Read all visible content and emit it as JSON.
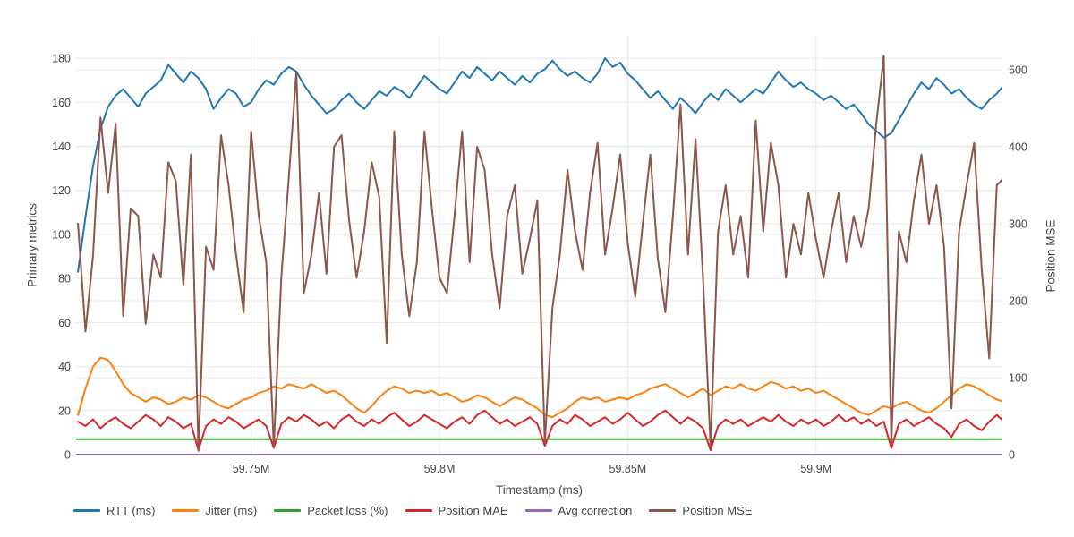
{
  "chart_data": {
    "type": "line",
    "title": "",
    "xlabel": "Timestamp (ms)",
    "ylabel_left": "Primary metrics",
    "ylabel_right": "Position MSE",
    "grid": true,
    "legend_position": "bottom",
    "x_range": [
      59703500,
      59949500
    ],
    "y_left_range": [
      0,
      190.2
    ],
    "y_right_range": [
      0,
      544.2
    ],
    "y_left_ticks": [
      0,
      20,
      40,
      60,
      80,
      100,
      120,
      140,
      160,
      180
    ],
    "y_right_ticks": [
      0,
      100,
      200,
      300,
      400,
      500
    ],
    "x_ticks": [
      {
        "value": 59750000,
        "label": "59.75M"
      },
      {
        "value": 59800000,
        "label": "59.8M"
      },
      {
        "value": 59850000,
        "label": "59.85M"
      },
      {
        "value": 59900000,
        "label": "59.9M"
      }
    ],
    "x_start": 59704000,
    "x_step": 2000,
    "n": 124,
    "series": [
      {
        "name": "RTT (ms)",
        "color": "#1f77b4",
        "axis": "left",
        "values": [
          83,
          108,
          131,
          148,
          158,
          163,
          166,
          162,
          158,
          164,
          167,
          170,
          177,
          173,
          169,
          174,
          171,
          166,
          157,
          162,
          166,
          164,
          158,
          160,
          166,
          170,
          168,
          173,
          176,
          174,
          168,
          163,
          159,
          155,
          157,
          161,
          164,
          160,
          157,
          161,
          165,
          163,
          167,
          165,
          162,
          167,
          172,
          169,
          166,
          164,
          169,
          174,
          171,
          176,
          173,
          170,
          174,
          171,
          168,
          172,
          169,
          173,
          175,
          179,
          175,
          172,
          174,
          171,
          169,
          173,
          180,
          176,
          178,
          173,
          170,
          166,
          162,
          165,
          161,
          157,
          162,
          159,
          155,
          160,
          164,
          161,
          166,
          163,
          160,
          163,
          166,
          164,
          169,
          174,
          170,
          167,
          169,
          166,
          164,
          161,
          163,
          160,
          157,
          159,
          155,
          150,
          147,
          144,
          146,
          152,
          158,
          164,
          169,
          166,
          171,
          168,
          164,
          166,
          162,
          159,
          157,
          161,
          164,
          168
        ]
      },
      {
        "name": "Jitter (ms)",
        "color": "#ff7f0e",
        "axis": "left",
        "values": [
          18,
          30,
          40,
          44,
          43,
          38,
          32,
          28,
          26,
          24,
          26,
          25,
          23,
          24,
          26,
          25,
          27,
          26,
          24,
          22,
          21,
          23,
          25,
          26,
          28,
          29,
          31,
          30,
          32,
          31,
          30,
          32,
          30,
          28,
          29,
          27,
          24,
          21,
          19,
          22,
          26,
          29,
          31,
          30,
          28,
          29,
          28,
          29,
          27,
          28,
          26,
          24,
          25,
          27,
          26,
          24,
          22,
          24,
          26,
          25,
          23,
          21,
          18,
          17,
          19,
          21,
          24,
          26,
          25,
          26,
          24,
          25,
          26,
          25,
          27,
          28,
          30,
          31,
          32,
          30,
          28,
          26,
          28,
          30,
          27,
          29,
          31,
          30,
          32,
          30,
          29,
          31,
          33,
          32,
          30,
          31,
          29,
          30,
          28,
          29,
          27,
          25,
          23,
          21,
          19,
          18,
          20,
          22,
          21,
          23,
          24,
          22,
          20,
          19,
          21,
          24,
          27,
          30,
          32,
          31,
          29,
          27,
          25,
          24
        ]
      },
      {
        "name": "Packet loss (%)",
        "color": "#2ca02c",
        "axis": "left",
        "constant": 7
      },
      {
        "name": "Position MAE",
        "color": "#d62728",
        "axis": "left",
        "values": [
          15,
          13,
          16,
          12,
          15,
          17,
          14,
          12,
          15,
          18,
          16,
          13,
          17,
          15,
          12,
          14,
          2,
          13,
          16,
          14,
          17,
          15,
          12,
          14,
          16,
          13,
          3,
          14,
          17,
          15,
          18,
          16,
          13,
          15,
          12,
          16,
          18,
          15,
          13,
          16,
          14,
          17,
          19,
          16,
          13,
          15,
          18,
          16,
          14,
          12,
          15,
          17,
          14,
          18,
          20,
          17,
          14,
          16,
          13,
          15,
          17,
          14,
          4,
          13,
          16,
          14,
          18,
          16,
          13,
          15,
          17,
          14,
          16,
          19,
          16,
          13,
          15,
          18,
          20,
          17,
          14,
          17,
          15,
          12,
          2,
          13,
          16,
          14,
          16,
          13,
          15,
          17,
          15,
          18,
          15,
          13,
          16,
          14,
          16,
          13,
          15,
          18,
          15,
          17,
          14,
          16,
          13,
          15,
          3,
          14,
          16,
          13,
          15,
          17,
          14,
          12,
          8,
          14,
          16,
          13,
          11,
          15,
          18,
          15
        ]
      },
      {
        "name": "Avg correction",
        "color": "#9467bd",
        "axis": "left",
        "constant": 0
      },
      {
        "name": "Position MSE",
        "color": "#8c564b",
        "axis": "right",
        "values": [
          300,
          160,
          258,
          438,
          340,
          430,
          180,
          320,
          310,
          170,
          260,
          230,
          380,
          355,
          220,
          390,
          5,
          270,
          240,
          415,
          350,
          260,
          185,
          420,
          310,
          250,
          10,
          230,
          360,
          497,
          210,
          260,
          340,
          235,
          400,
          415,
          305,
          230,
          290,
          380,
          335,
          145,
          420,
          260,
          180,
          250,
          420,
          320,
          230,
          210,
          310,
          420,
          250,
          400,
          370,
          260,
          190,
          310,
          350,
          235,
          280,
          330,
          15,
          190,
          260,
          370,
          290,
          240,
          340,
          405,
          260,
          320,
          390,
          275,
          205,
          300,
          390,
          255,
          185,
          310,
          455,
          260,
          410,
          230,
          10,
          290,
          350,
          260,
          310,
          230,
          434,
          290,
          405,
          350,
          230,
          300,
          260,
          340,
          280,
          230,
          290,
          340,
          250,
          310,
          270,
          320,
          430,
          518,
          15,
          290,
          250,
          330,
          390,
          300,
          350,
          270,
          60,
          290,
          350,
          405,
          240,
          125,
          350,
          360
        ]
      }
    ],
    "colors": {
      "grid": "#e7e7e7",
      "tick_text": "#444444",
      "background": "#ffffff"
    }
  }
}
